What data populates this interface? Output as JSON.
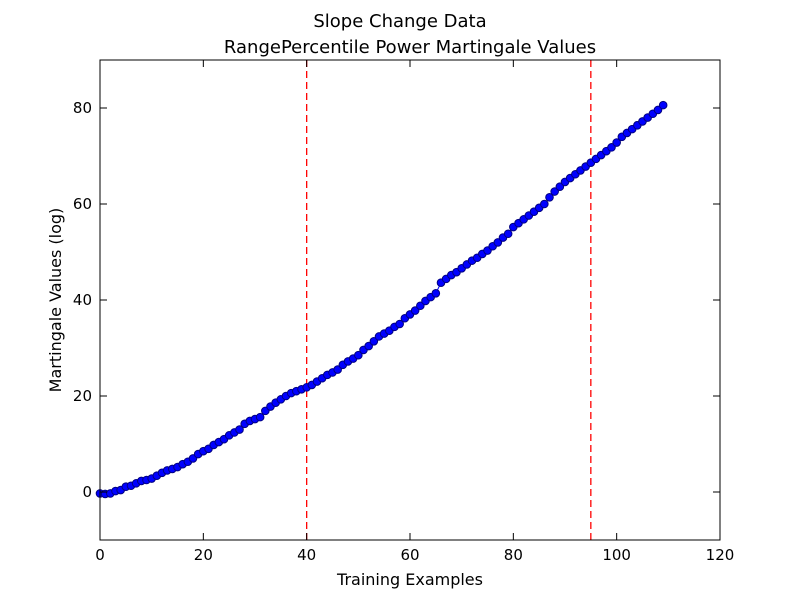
{
  "chart_data": {
    "type": "scatter",
    "title": "Slope Change Data",
    "subtitle": "RangePercentile Power Martingale Values",
    "xlabel": "Training Examples",
    "ylabel": "Martingale Values (log)",
    "xlim": [
      0,
      120
    ],
    "ylim": [
      -10,
      90
    ],
    "xticks": [
      0,
      20,
      40,
      60,
      80,
      100,
      120
    ],
    "yticks": [
      0,
      20,
      40,
      60,
      80
    ],
    "grid": false,
    "legend": "none",
    "colors": {
      "marker_fill": "#0000ff",
      "marker_edge": "#000080",
      "line": "#0000ff",
      "changepoint": "#ff0000"
    },
    "change_points": [
      40,
      95
    ],
    "series": [
      {
        "x": [
          0,
          1,
          2,
          3,
          4,
          5,
          6,
          7,
          8,
          9,
          10,
          11,
          12,
          13,
          14,
          15,
          16,
          17,
          18,
          19,
          20,
          21,
          22,
          23,
          24,
          25,
          26,
          27,
          28,
          29,
          30,
          31,
          32,
          33,
          34,
          35,
          36,
          37,
          38,
          39,
          40,
          41,
          42,
          43,
          44,
          45,
          46,
          47,
          48,
          49,
          50,
          51,
          52,
          53,
          54,
          55,
          56,
          57,
          58,
          59,
          60,
          61,
          62,
          63,
          64,
          65,
          66,
          67,
          68,
          69,
          70,
          71,
          72,
          73,
          74,
          75,
          76,
          77,
          78,
          79,
          80,
          81,
          82,
          83,
          84,
          85,
          86,
          87,
          88,
          89,
          90,
          91,
          92,
          93,
          94,
          95,
          96,
          97,
          98,
          99,
          100,
          101,
          102,
          103,
          104,
          105,
          106,
          107,
          108,
          109
        ],
        "y": [
          -0.3,
          -0.4,
          -0.3,
          0.2,
          0.4,
          1.1,
          1.3,
          1.8,
          2.3,
          2.5,
          2.8,
          3.4,
          4.0,
          4.5,
          4.8,
          5.2,
          5.8,
          6.3,
          7.0,
          7.9,
          8.5,
          9.0,
          9.8,
          10.4,
          11.0,
          11.8,
          12.4,
          13.0,
          14.2,
          14.8,
          15.2,
          15.6,
          16.9,
          17.8,
          18.6,
          19.3,
          20.0,
          20.6,
          21.0,
          21.4,
          21.8,
          22.3,
          23.0,
          23.7,
          24.4,
          24.9,
          25.5,
          26.5,
          27.2,
          27.8,
          28.5,
          29.6,
          30.4,
          31.4,
          32.4,
          33.0,
          33.6,
          34.4,
          35.0,
          36.2,
          37.0,
          37.8,
          38.8,
          39.8,
          40.6,
          41.4,
          43.6,
          44.4,
          45.2,
          45.8,
          46.6,
          47.4,
          48.2,
          48.8,
          49.6,
          50.3,
          51.2,
          52.0,
          53.0,
          53.8,
          55.2,
          56.0,
          56.8,
          57.6,
          58.4,
          59.2,
          60.0,
          61.4,
          62.6,
          63.6,
          64.6,
          65.4,
          66.2,
          67.0,
          67.8,
          68.6,
          69.4,
          70.2,
          71.0,
          71.8,
          72.8,
          74.0,
          74.8,
          75.6,
          76.4,
          77.2,
          78.0,
          78.8,
          79.6,
          80.6
        ]
      }
    ]
  }
}
